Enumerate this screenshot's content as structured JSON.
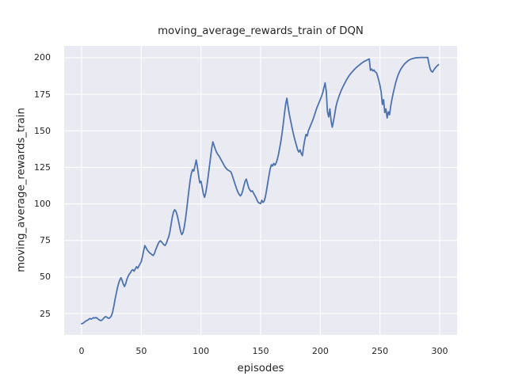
{
  "chart_data": {
    "type": "line",
    "title": "moving_average_rewards_train of DQN",
    "xlabel": "episodes",
    "ylabel": "moving_average_rewards_train",
    "legend": null,
    "grid": true,
    "xlim": [
      -14.6,
      314.6
    ],
    "ylim": [
      10.4,
      208.1
    ],
    "xticks": [
      0,
      50,
      100,
      150,
      200,
      250,
      300
    ],
    "yticks": [
      25,
      50,
      75,
      100,
      125,
      150,
      175,
      200
    ],
    "x_start": 0,
    "x_step": 1,
    "values": [
      18.0,
      18.3,
      18.8,
      19.6,
      20.1,
      20.4,
      21.1,
      21.6,
      21.2,
      21.6,
      22.2,
      21.9,
      22.3,
      21.8,
      21.1,
      20.6,
      20.2,
      20.5,
      21.3,
      22.2,
      22.9,
      22.6,
      21.9,
      21.7,
      22.4,
      23.5,
      26.0,
      30.0,
      34.5,
      38.5,
      42.5,
      45.5,
      48.0,
      49.5,
      47.5,
      45.0,
      43.5,
      45.5,
      48.5,
      50.5,
      52.0,
      53.0,
      54.5,
      55.0,
      54.0,
      55.5,
      57.0,
      56.0,
      57.5,
      59.0,
      60.5,
      64.0,
      68.0,
      71.5,
      70.0,
      68.5,
      67.5,
      66.5,
      66.0,
      65.2,
      64.7,
      66.0,
      68.5,
      70.5,
      72.5,
      74.0,
      74.8,
      74.0,
      73.0,
      72.0,
      71.6,
      73.0,
      75.5,
      77.5,
      81.0,
      86.0,
      91.0,
      94.5,
      96.0,
      95.0,
      92.5,
      89.0,
      85.0,
      81.0,
      79.0,
      80.5,
      84.0,
      89.5,
      96.0,
      103.0,
      110.0,
      116.5,
      121.0,
      123.5,
      122.5,
      126.0,
      130.0,
      125.5,
      119.5,
      114.5,
      115.5,
      111.5,
      107.0,
      104.5,
      107.5,
      112.5,
      118.5,
      125.0,
      131.5,
      138.0,
      142.5,
      140.0,
      137.5,
      135.5,
      134.0,
      133.0,
      131.5,
      130.0,
      128.5,
      127.0,
      125.5,
      124.5,
      123.5,
      123.0,
      122.5,
      122.0,
      120.0,
      117.5,
      115.0,
      112.5,
      110.0,
      108.0,
      106.5,
      105.5,
      106.5,
      109.0,
      112.5,
      115.5,
      117.0,
      114.0,
      111.0,
      109.5,
      108.5,
      109.0,
      107.5,
      106.0,
      104.5,
      102.5,
      101.0,
      100.5,
      100.2,
      102.5,
      101.0,
      102.0,
      105.0,
      109.5,
      114.5,
      119.5,
      124.0,
      126.8,
      125.9,
      127.7,
      126.5,
      128.0,
      130.5,
      134.0,
      138.5,
      143.0,
      148.5,
      155.0,
      162.0,
      168.5,
      172.3,
      166.5,
      161.5,
      157.5,
      153.5,
      149.5,
      146.0,
      143.0,
      140.0,
      137.0,
      135.5,
      137.0,
      134.5,
      133.0,
      139.0,
      144.0,
      147.5,
      146.5,
      150.0,
      152.0,
      154.0,
      156.0,
      158.0,
      160.5,
      163.0,
      165.5,
      167.5,
      169.5,
      171.5,
      173.5,
      176.0,
      179.5,
      182.8,
      177.0,
      163.0,
      159.5,
      165.0,
      157.0,
      152.5,
      156.5,
      161.0,
      166.0,
      169.5,
      172.0,
      174.5,
      176.5,
      178.5,
      180.2,
      181.8,
      183.4,
      184.9,
      186.3,
      187.6,
      188.7,
      189.7,
      190.6,
      191.5,
      192.4,
      193.2,
      193.9,
      194.6,
      195.2,
      195.9,
      196.5,
      197.1,
      197.6,
      198.0,
      198.4,
      198.8,
      199.2,
      191.4,
      192.3,
      191.0,
      191.6,
      190.3,
      189.8,
      187.5,
      184.5,
      181.0,
      176.5,
      168.0,
      171.3,
      162.5,
      165.0,
      158.8,
      163.0,
      161.0,
      167.0,
      171.5,
      175.5,
      179.0,
      182.5,
      185.3,
      187.8,
      189.8,
      191.5,
      192.9,
      194.1,
      195.2,
      196.1,
      196.9,
      197.6,
      198.2,
      198.7,
      199.1,
      199.4,
      199.6,
      199.8,
      199.9,
      200.0,
      200.1,
      200.1,
      200.2,
      200.2,
      200.2,
      200.2,
      200.2,
      200.2,
      200.2,
      196.0,
      192.5,
      190.8,
      190.2,
      191.5,
      192.7,
      193.7,
      194.6,
      195.3
    ],
    "style": {
      "figure_bg": "#ffffff",
      "plot_bg": "#eaeaf2",
      "grid_color": "#ffffff",
      "line_color": "#4c72b0",
      "text_color": "#262626"
    }
  }
}
